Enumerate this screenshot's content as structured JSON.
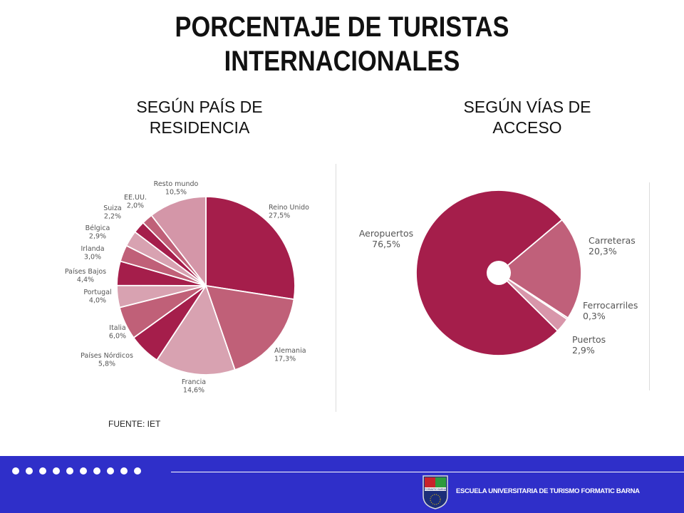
{
  "title_line1": "PORCENTAJE DE TURISTAS",
  "title_line2": "INTERNACIONALES",
  "subtitle_left_line1": "SEGÚN PAÍS DE",
  "subtitle_left_line2": "RESIDENCIA",
  "subtitle_right_line1": "SEGÚN VÍAS DE",
  "subtitle_right_line2": "ACCESO",
  "source": "FUENTE:  IET",
  "footer": {
    "school_name": "ESCUELA UNIVERSITARIA DE TURISMO FORMATIC BARNA",
    "crest_text": "FORMATIC BARNA",
    "dot_count": 10,
    "background_color": "#2f2fc9"
  },
  "chart_data": [
    {
      "type": "pie",
      "title": "SEGÚN PAÍS DE RESIDENCIA",
      "slices": [
        {
          "label": "Reino Unido",
          "value": 27.5,
          "value_text": "27,5%",
          "color": "#a51e4b"
        },
        {
          "label": "Alemania",
          "value": 17.3,
          "value_text": "17,3%",
          "color": "#c06078"
        },
        {
          "label": "Francia",
          "value": 14.6,
          "value_text": "14,6%",
          "color": "#d8a2b1"
        },
        {
          "label": "Países Nórdicos",
          "value": 5.8,
          "value_text": "5,8%",
          "color": "#a51e4b"
        },
        {
          "label": "Italia",
          "value": 6.0,
          "value_text": "6,0%",
          "color": "#c06078"
        },
        {
          "label": "Portugal",
          "value": 4.0,
          "value_text": "4,0%",
          "color": "#d8a2b1"
        },
        {
          "label": "Países Bajos",
          "value": 4.4,
          "value_text": "4,4%",
          "color": "#a51e4b"
        },
        {
          "label": "Irlanda",
          "value": 3.0,
          "value_text": "3,0%",
          "color": "#c06078"
        },
        {
          "label": "Bélgica",
          "value": 2.9,
          "value_text": "2,9%",
          "color": "#d8a2b1"
        },
        {
          "label": "Suiza",
          "value": 2.2,
          "value_text": "2,2%",
          "color": "#a51e4b"
        },
        {
          "label": "EE.UU.",
          "value": 2.0,
          "value_text": "2,0%",
          "color": "#c06078"
        },
        {
          "label": "Resto mundo",
          "value": 10.5,
          "value_text": "10,5%",
          "color": "#d496a8"
        }
      ]
    },
    {
      "type": "pie",
      "title": "SEGÚN VÍAS DE ACCESO",
      "slices": [
        {
          "label": "Carreteras",
          "value": 20.3,
          "value_text": "20,3%",
          "color": "#c0607a"
        },
        {
          "label": "Ferrocarriles",
          "value": 0.3,
          "value_text": "0,3%",
          "color": "#a51e4b"
        },
        {
          "label": "Puertos",
          "value": 2.9,
          "value_text": "2,9%",
          "color": "#d896aa"
        },
        {
          "label": "Aeropuertos",
          "value": 76.5,
          "value_text": "76,5%",
          "color": "#a51e4b"
        }
      ]
    }
  ]
}
